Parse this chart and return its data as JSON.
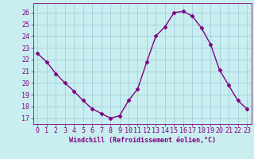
{
  "x": [
    0,
    1,
    2,
    3,
    4,
    5,
    6,
    7,
    8,
    9,
    10,
    11,
    12,
    13,
    14,
    15,
    16,
    17,
    18,
    19,
    20,
    21,
    22,
    23
  ],
  "y": [
    22.5,
    21.8,
    20.8,
    20.0,
    19.3,
    18.5,
    17.8,
    17.4,
    17.0,
    17.2,
    18.5,
    19.5,
    21.8,
    24.0,
    24.8,
    26.0,
    26.1,
    25.7,
    24.7,
    23.3,
    21.1,
    19.8,
    18.5,
    17.8
  ],
  "line_color": "#800080",
  "marker": "D",
  "marker_size": 2.5,
  "bg_color": "#c8eef0",
  "grid_color": "#9ec8d8",
  "ylabel_values": [
    17,
    18,
    19,
    20,
    21,
    22,
    23,
    24,
    25,
    26
  ],
  "ylim": [
    16.5,
    26.8
  ],
  "xlim": [
    -0.5,
    23.5
  ],
  "xlabel": "Windchill (Refroidissement éolien,°C)",
  "tick_color": "#800080",
  "label_color": "#800080",
  "xlabel_fontsize": 6.0,
  "tick_fontsize": 6.0,
  "linewidth": 1.0
}
